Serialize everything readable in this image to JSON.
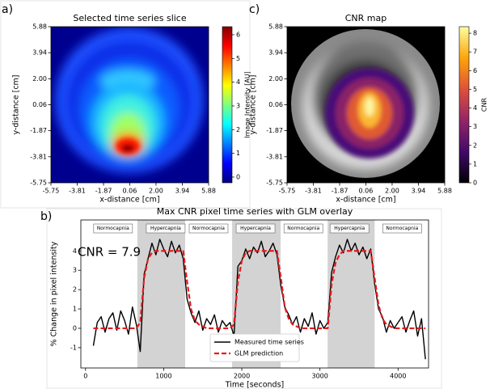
{
  "chart_data": [
    {
      "type": "heatmap",
      "panel_label": "a)",
      "title": "Selected time series slice",
      "xlabel": "x-distance [cm]",
      "ylabel": "y-distance [cm]",
      "xlim": [
        -5.75,
        5.88
      ],
      "ylim": [
        -5.75,
        5.88
      ],
      "xticks": [
        -5.75,
        -3.81,
        -1.87,
        0.06,
        {
          "value": 2,
          "label": "2.00"
        },
        3.94,
        5.88
      ],
      "yticks": [
        -5.75,
        -3.81,
        -1.87,
        0.06,
        {
          "value": 2,
          "label": "2.00"
        },
        3.94,
        5.88
      ],
      "colormap": "jet",
      "colorbar_label": "Image Intensity [AU]",
      "clim": [
        -0.24,
        6.34
      ],
      "cticks": [
        0,
        1,
        2,
        3,
        4,
        5,
        6
      ]
    },
    {
      "type": "line",
      "panel_label": "b)",
      "title": "Max CNR pixel time series with GLM overlay",
      "xlabel": "Time [seconds]",
      "ylabel": "% Change in pixel intensity",
      "xlim": [
        -60,
        4390
      ],
      "ylim": [
        -2.05,
        5.6
      ],
      "xticks": [
        0,
        1000,
        2000,
        3000,
        4000
      ],
      "yticks": [
        -1,
        0,
        1,
        2,
        3,
        4
      ],
      "x": [
        100,
        150,
        200,
        250,
        300,
        350,
        400,
        450,
        500,
        550,
        600,
        650,
        700,
        750,
        800,
        850,
        900,
        950,
        1000,
        1050,
        1100,
        1150,
        1200,
        1250,
        1300,
        1350,
        1400,
        1450,
        1500,
        1550,
        1600,
        1650,
        1700,
        1750,
        1800,
        1850,
        1900,
        1950,
        2000,
        2050,
        2100,
        2150,
        2200,
        2250,
        2300,
        2350,
        2400,
        2450,
        2500,
        2550,
        2600,
        2650,
        2700,
        2750,
        2800,
        2850,
        2900,
        2950,
        3000,
        3050,
        3100,
        3150,
        3200,
        3250,
        3300,
        3350,
        3400,
        3450,
        3500,
        3550,
        3600,
        3650,
        3700,
        3750,
        3800,
        3850,
        3900,
        3950,
        4000,
        4050,
        4100,
        4150,
        4200,
        4250,
        4300,
        4350
      ],
      "series": [
        {
          "name": "Measured time series",
          "color": "#000000",
          "style": "solid",
          "values": [
            -0.9,
            0.3,
            0.6,
            -0.2,
            0.5,
            0.8,
            -0.1,
            0.9,
            0.4,
            -0.3,
            1.1,
            0.2,
            -1.2,
            2.8,
            3.6,
            4.4,
            3.8,
            4.6,
            4.1,
            3.7,
            4.5,
            3.9,
            4.3,
            3.6,
            1.5,
            0.8,
            0.3,
            0.9,
            -0.1,
            0.5,
            0.2,
            0.7,
            -0.2,
            0.4,
            0.1,
            0.3,
            -0.4,
            3.2,
            3.5,
            4.1,
            3.6,
            4.2,
            3.9,
            4.5,
            3.7,
            4.0,
            4.4,
            3.8,
            2.2,
            1.1,
            0.7,
            0.2,
            0.6,
            -0.2,
            0.5,
            0.1,
            0.8,
            -0.3,
            0.4,
            0.0,
            0.3,
            2.9,
            3.7,
            4.3,
            3.9,
            4.6,
            4.0,
            4.4,
            3.8,
            4.2,
            3.6,
            4.1,
            2.3,
            1.0,
            0.6,
            -0.2,
            0.4,
            0.0,
            0.3,
            0.6,
            -0.2,
            0.4,
            0.9,
            -0.4,
            0.5,
            -1.6
          ]
        },
        {
          "name": "GLM prediction",
          "color": "#e8191c",
          "style": "dashed",
          "values": [
            0,
            0,
            0,
            0,
            0,
            0,
            0,
            0,
            0,
            0,
            0,
            0,
            0.3,
            2.6,
            3.6,
            3.9,
            4,
            4,
            4,
            4,
            4,
            4,
            4,
            4,
            2.4,
            1.0,
            0.4,
            0.2,
            0.1,
            0,
            0,
            0,
            0,
            0,
            0,
            0,
            0.2,
            2.4,
            3.5,
            3.9,
            4,
            4,
            4,
            4,
            4,
            4,
            4,
            4,
            2.6,
            1.1,
            0.5,
            0.2,
            0.1,
            0,
            0,
            0,
            0,
            0,
            0,
            0,
            0,
            2.3,
            3.4,
            3.8,
            4,
            4,
            4,
            4,
            4,
            4,
            4,
            4,
            2.6,
            1.2,
            0.5,
            0.2,
            0.1,
            0,
            0,
            0,
            0,
            0,
            0,
            0,
            0,
            0
          ]
        }
      ],
      "shaded_spans": [
        [
          663,
          1275
        ],
        [
          1876,
          2497
        ],
        [
          3098,
          3700
        ]
      ],
      "span_color": "#d3d3d3",
      "phase_labels": [
        {
          "text": "Normocapnia",
          "x": 352
        },
        {
          "text": "Hypercapnia",
          "x": 1026
        },
        {
          "text": "Normocapnia",
          "x": 1575
        },
        {
          "text": "Hypercapnia",
          "x": 2176
        },
        {
          "text": "Normocapnia",
          "x": 2788
        },
        {
          "text": "Hypercapnia",
          "x": 3378
        },
        {
          "text": "Normocapnia",
          "x": 4052
        }
      ],
      "annotation": {
        "text": "CNR = 7.9",
        "color": "#ff0000"
      },
      "legend": "lower center"
    },
    {
      "type": "heatmap",
      "panel_label": "c)",
      "title": "CNR map",
      "xlabel": "x-distance [cm]",
      "ylabel": "y-distance [cm]",
      "xlim": [
        -5.75,
        5.88
      ],
      "ylim": [
        -5.75,
        5.88
      ],
      "xticks": [
        -5.75,
        -3.81,
        -1.87,
        0.06,
        {
          "value": 2,
          "label": "2.00"
        },
        3.94,
        5.88
      ],
      "yticks": [
        -5.75,
        -3.81,
        -1.87,
        0.06,
        {
          "value": 2,
          "label": "2.00"
        },
        3.94,
        5.88
      ],
      "colormap": "inferno",
      "colorbar_label": "CNR",
      "clim": [
        0,
        8.35
      ],
      "cticks": [
        0,
        1,
        2,
        3,
        4,
        5,
        6,
        7,
        8
      ]
    }
  ]
}
